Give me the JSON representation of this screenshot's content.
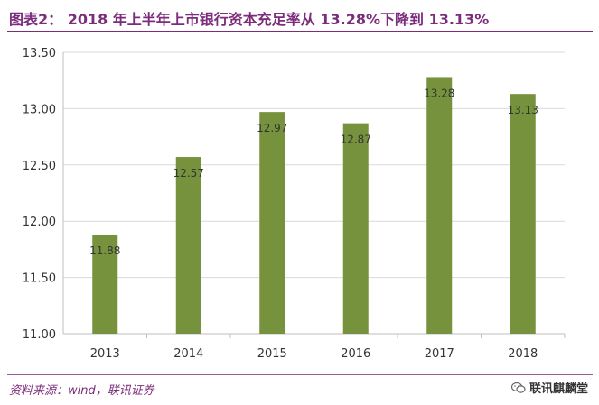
{
  "title": "图表2： 2018 年上半年上市银行资本充足率从 13.28%下降到 13.13%",
  "source": "资料来源：wind，联讯证券",
  "watermark": {
    "text": "联讯麒麟堂",
    "icon": "wechat-icon"
  },
  "colors": {
    "bar": "#76923c",
    "title": "#7b2c7b",
    "axis": "#bfbfbf",
    "grid": "#d9d9d9"
  },
  "chart_data": {
    "type": "bar",
    "categories": [
      "2013",
      "2014",
      "2015",
      "2016",
      "2017",
      "2018"
    ],
    "values": [
      11.88,
      12.57,
      12.97,
      12.87,
      13.28,
      13.13
    ],
    "labels": [
      "11.88",
      "12.57",
      "12.97",
      "12.87",
      "13.28",
      "13.13"
    ],
    "ylim": [
      11.0,
      13.5
    ],
    "yticks": [
      "11.00",
      "11.50",
      "12.00",
      "12.50",
      "13.00",
      "13.50"
    ],
    "grid": true,
    "legend": "none"
  }
}
